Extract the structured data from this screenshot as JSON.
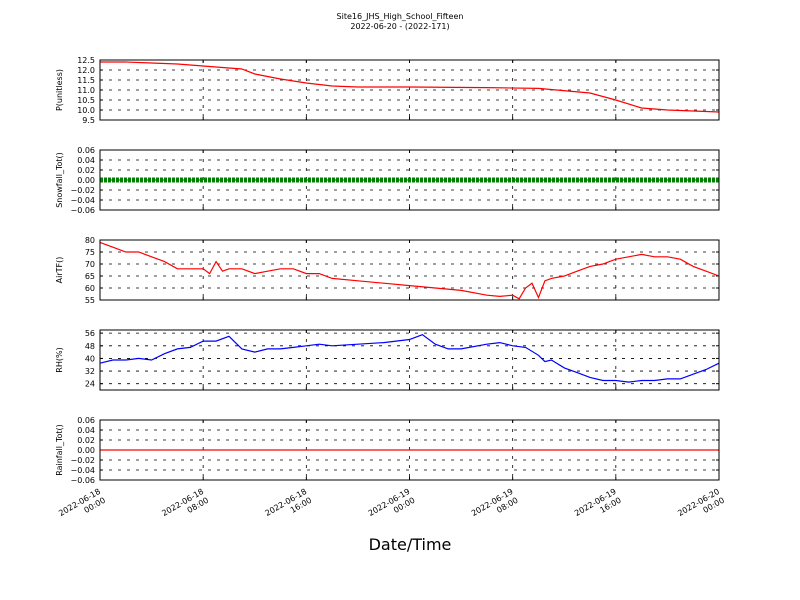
{
  "chart_data": {
    "type": "line",
    "title": "Site16_JHS_High_School_Fifteen",
    "subtitle": "2022-06-20 - (2022-171)",
    "xlabel": "Date/Time",
    "x_range": [
      "2022-06-18 00:00",
      "2022-06-20 00:00"
    ],
    "x_ticks": [
      {
        "l1": "2022-06-18",
        "l2": "00:00",
        "h": 0
      },
      {
        "l1": "2022-06-18",
        "l2": "08:00",
        "h": 8
      },
      {
        "l1": "2022-06-18",
        "l2": "16:00",
        "h": 16
      },
      {
        "l1": "2022-06-19",
        "l2": "00:00",
        "h": 24
      },
      {
        "l1": "2022-06-19",
        "l2": "08:00",
        "h": 32
      },
      {
        "l1": "2022-06-19",
        "l2": "16:00",
        "h": 40
      },
      {
        "l1": "2022-06-20",
        "l2": "00:00",
        "h": 48
      }
    ],
    "grid": true,
    "panels": [
      {
        "ylabel": "P(unitless)",
        "color": "#ff0000",
        "ylim": [
          9.5,
          12.5
        ],
        "yticks": [
          "12.5",
          "12.0",
          "11.5",
          "11.0",
          "10.5",
          "10.0",
          "9.5"
        ],
        "series": {
          "hours": [
            0,
            2,
            4,
            6,
            8,
            10,
            11,
            12,
            14,
            16,
            18,
            20,
            24,
            30,
            34,
            38,
            40,
            42,
            44,
            46,
            48
          ],
          "values": [
            12.4,
            12.4,
            12.35,
            12.3,
            12.2,
            12.1,
            12.05,
            11.8,
            11.55,
            11.35,
            11.2,
            11.15,
            11.15,
            11.12,
            11.08,
            10.85,
            10.5,
            10.1,
            10.0,
            9.95,
            9.9
          ]
        }
      },
      {
        "ylabel": "Snowfall_Tot()",
        "color": "#008000",
        "ylim": [
          -0.06,
          0.06
        ],
        "yticks": [
          "0.06",
          "0.04",
          "0.02",
          "0.00",
          "−0.02",
          "−0.04",
          "−0.06"
        ],
        "series": {
          "hours": [
            0,
            48
          ],
          "values": [
            0.0,
            0.0
          ]
        }
      },
      {
        "ylabel": "AirTF()",
        "color": "#ff0000",
        "ylim": [
          55,
          80
        ],
        "yticks": [
          "80",
          "75",
          "70",
          "65",
          "60",
          "55"
        ],
        "series": {
          "hours": [
            0,
            1,
            2,
            3,
            4,
            5,
            6,
            7,
            8,
            8.5,
            9,
            9.5,
            10,
            11,
            12,
            13,
            14,
            15,
            16,
            17,
            18,
            20,
            22,
            24,
            26,
            28,
            30,
            31,
            32,
            32.5,
            33,
            33.5,
            34,
            34.5,
            35,
            36,
            37,
            38,
            39,
            40,
            41,
            42,
            43,
            44,
            45,
            46,
            47,
            48
          ],
          "values": [
            79,
            77,
            75,
            75,
            73,
            71,
            68,
            68,
            68,
            66,
            71,
            67,
            68,
            68,
            66,
            67,
            68,
            68,
            66,
            66,
            64,
            63,
            62,
            61,
            60,
            59,
            57,
            56.5,
            57,
            55.5,
            60,
            62,
            56,
            63,
            64,
            65,
            67,
            69,
            70,
            72,
            73,
            74,
            73,
            73,
            72,
            69,
            67,
            65
          ]
        }
      },
      {
        "ylabel": "RH(%)",
        "color": "#0000ff",
        "ylim": [
          20,
          58
        ],
        "yticks": [
          "56",
          "48",
          "40",
          "32",
          "24"
        ],
        "series": {
          "hours": [
            0,
            1,
            2,
            3,
            4,
            5,
            6,
            7,
            8,
            9,
            10,
            11,
            12,
            13,
            14,
            15,
            16,
            17,
            18,
            20,
            22,
            24,
            25,
            26,
            27,
            28,
            30,
            31,
            32,
            33,
            34,
            34.5,
            35,
            36,
            37,
            38,
            39,
            40,
            41,
            42,
            43,
            44,
            45,
            46,
            47,
            48
          ],
          "values": [
            37,
            39,
            39,
            40,
            39,
            43,
            46,
            47,
            51,
            51,
            54,
            46,
            44,
            46,
            46,
            47,
            48,
            49,
            48,
            49,
            50,
            52,
            55,
            49,
            46,
            46,
            49,
            50,
            48,
            47,
            42,
            38,
            39,
            34,
            31,
            28,
            26,
            26,
            25,
            26,
            26,
            27,
            27,
            30,
            33,
            37
          ]
        }
      },
      {
        "ylabel": "Rainfall_Tot()",
        "color": "#ff0000",
        "ylim": [
          -0.06,
          0.06
        ],
        "yticks": [
          "0.06",
          "0.04",
          "0.02",
          "0.00",
          "−0.02",
          "−0.04",
          "−0.06"
        ],
        "series": {
          "hours": [
            0,
            48
          ],
          "values": [
            0.0,
            0.0
          ]
        }
      }
    ]
  }
}
